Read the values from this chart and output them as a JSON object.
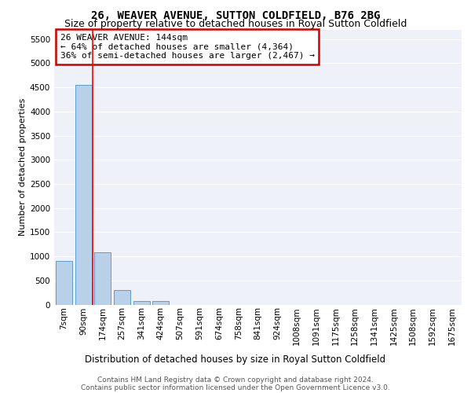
{
  "title": "26, WEAVER AVENUE, SUTTON COLDFIELD, B76 2BG",
  "subtitle": "Size of property relative to detached houses in Royal Sutton Coldfield",
  "xlabel": "Distribution of detached houses by size in Royal Sutton Coldfield",
  "ylabel": "Number of detached properties",
  "annotation_line1": "26 WEAVER AVENUE: 144sqm",
  "annotation_line2": "← 64% of detached houses are smaller (4,364)",
  "annotation_line3": "36% of semi-detached houses are larger (2,467) →",
  "footer_line1": "Contains HM Land Registry data © Crown copyright and database right 2024.",
  "footer_line2": "Contains public sector information licensed under the Open Government Licence v3.0.",
  "bar_labels": [
    "7sqm",
    "90sqm",
    "174sqm",
    "257sqm",
    "341sqm",
    "424sqm",
    "507sqm",
    "591sqm",
    "674sqm",
    "758sqm",
    "841sqm",
    "924sqm",
    "1008sqm",
    "1091sqm",
    "1175sqm",
    "1258sqm",
    "1341sqm",
    "1425sqm",
    "1508sqm",
    "1592sqm",
    "1675sqm"
  ],
  "bar_values": [
    900,
    4550,
    1075,
    300,
    75,
    70,
    0,
    0,
    0,
    0,
    0,
    0,
    0,
    0,
    0,
    0,
    0,
    0,
    0,
    0,
    0
  ],
  "bar_color": "#b8d0e8",
  "bar_edge_color": "#5a9fd4",
  "red_line_x": 1.5,
  "ylim": [
    0,
    5700
  ],
  "yticks": [
    0,
    500,
    1000,
    1500,
    2000,
    2500,
    3000,
    3500,
    4000,
    4500,
    5000,
    5500
  ],
  "bg_color": "#eef2f8",
  "annotation_box_color": "#cc0000",
  "grid_color": "#ffffff",
  "title_fontsize": 10,
  "subtitle_fontsize": 9,
  "axis_label_fontsize": 8.5,
  "ylabel_fontsize": 8,
  "tick_fontsize": 7.5,
  "annotation_fontsize": 8,
  "footer_fontsize": 6.5
}
